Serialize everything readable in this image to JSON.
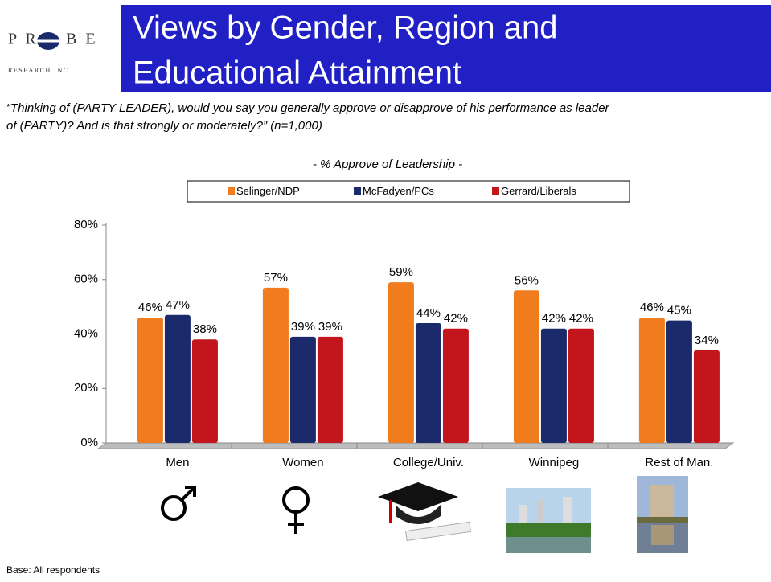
{
  "logo": {
    "left": "P R",
    "right": "B E",
    "tagline": "RESEARCH INC."
  },
  "header": {
    "title_lines": [
      "Views by Gender, Region and",
      "Educational Attainment"
    ]
  },
  "question": {
    "lines": [
      "“Thinking of (PARTY LEADER), would you say you generally approve or disapprove of his performance as leader",
      "of (PARTY)? And is that strongly or moderately?” (n=1,000)"
    ]
  },
  "chart_data": {
    "type": "bar",
    "subtitle": "- % Approve of Leadership -",
    "categories": [
      "Men",
      "Women",
      "College/Univ.",
      "Winnipeg",
      "Rest of Man."
    ],
    "series": [
      {
        "name": "Selinger/NDP",
        "color": "#f07c1e",
        "values": [
          46,
          57,
          59,
          56,
          46
        ],
        "value_labels": [
          "46%",
          "57%",
          "59%",
          "56%",
          "46%"
        ]
      },
      {
        "name": "McFadyen/PCs",
        "color": "#1b2a6b",
        "values": [
          47,
          39,
          44,
          42,
          45
        ],
        "value_labels": [
          "47%",
          "39%",
          "44%",
          "42%",
          "45%"
        ]
      },
      {
        "name": "Gerrard/Liberals",
        "color": "#c3161c",
        "values": [
          38,
          39,
          42,
          42,
          34
        ],
        "value_labels": [
          "38%",
          "39%",
          "42%",
          "42%",
          "34%"
        ]
      }
    ],
    "ylim": [
      0,
      80
    ],
    "yticks": [
      {
        "value": 0,
        "label": "0%"
      },
      {
        "value": 20,
        "label": "20%"
      },
      {
        "value": 40,
        "label": "40%"
      },
      {
        "value": 60,
        "label": "60%"
      },
      {
        "value": 80,
        "label": "80%"
      }
    ],
    "legend": "top"
  },
  "footer": {
    "base": "Base: All respondents"
  }
}
